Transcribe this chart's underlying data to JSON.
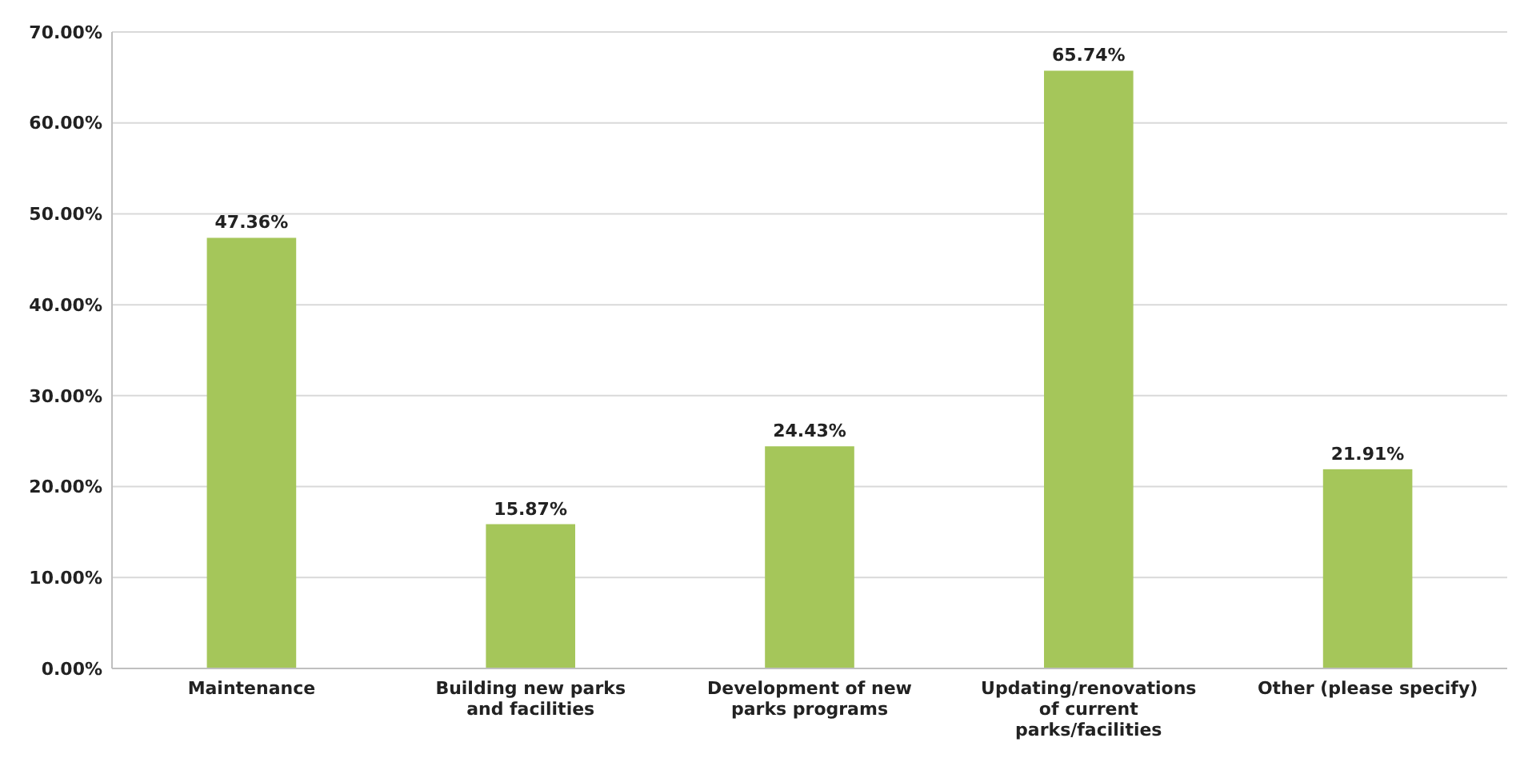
{
  "chart_data": {
    "type": "bar",
    "categories": [
      "Maintenance",
      "Building new parks and facilities",
      "Development of new parks programs",
      "Updating/renovations of current parks/facilities",
      "Other (please specify)"
    ],
    "values": [
      47.36,
      15.87,
      24.43,
      65.74,
      21.91
    ],
    "value_labels": [
      "47.36%",
      "15.87%",
      "24.43%",
      "65.74%",
      "21.91%"
    ],
    "color": "#a5c65a",
    "ylim": [
      0,
      70
    ],
    "yticks": [
      {
        "value": 0,
        "label": "0.00%"
      },
      {
        "value": 10,
        "label": "10.00%"
      },
      {
        "value": 20,
        "label": "20.00%"
      },
      {
        "value": 30,
        "label": "30.00%"
      },
      {
        "value": 40,
        "label": "40.00%"
      },
      {
        "value": 50,
        "label": "50.00%"
      },
      {
        "value": 60,
        "label": "60.00%"
      },
      {
        "value": 70,
        "label": "70.00%"
      }
    ],
    "grid": "y"
  }
}
